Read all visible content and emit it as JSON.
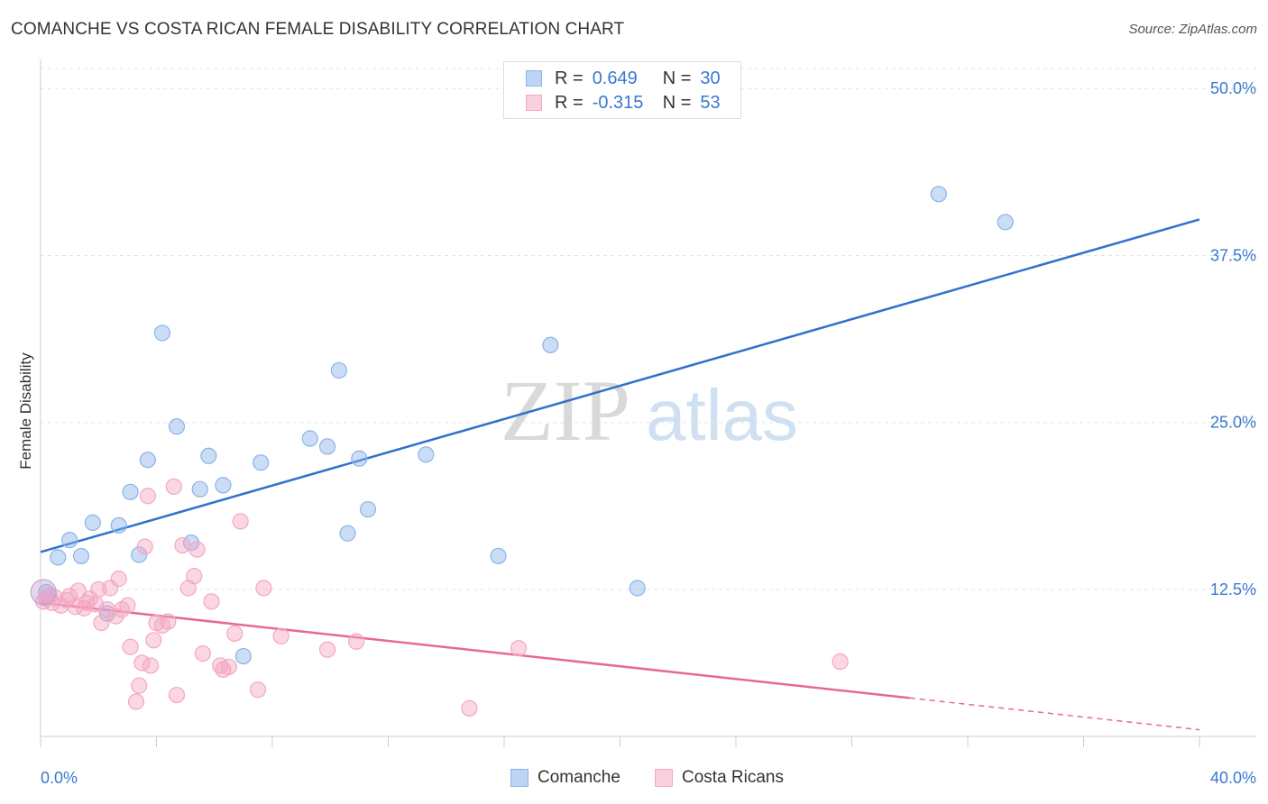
{
  "title": "COMANCHE VS COSTA RICAN FEMALE DISABILITY CORRELATION CHART",
  "source": "Source: ZipAtlas.com",
  "watermark": {
    "zip": "ZIP",
    "atlas": "atlas"
  },
  "legend": {
    "rows": [
      {
        "r_label": "R =",
        "r_value": "0.649",
        "n_label": "N =",
        "n_value": "30"
      },
      {
        "r_label": "R =",
        "r_value": "-0.315",
        "n_label": "N =",
        "n_value": "53"
      }
    ]
  },
  "chart_data": {
    "type": "scatter",
    "title": "COMANCHE VS COSTA RICAN FEMALE DISABILITY CORRELATION CHART",
    "xlabel": "",
    "ylabel": "Female Disability",
    "xlim": [
      0,
      40
    ],
    "ylim": [
      1.5,
      51.5
    ],
    "x_tick_labels": [
      "0.0%",
      "40.0%"
    ],
    "y_ticks": [
      12.5,
      25.0,
      37.5,
      50.0
    ],
    "y_tick_labels": [
      "12.5%",
      "25.0%",
      "37.5%",
      "50.0%"
    ],
    "grid": true,
    "legend_position": "top-center",
    "series": [
      {
        "name": "Comanche",
        "color": "#8ab4e8",
        "line_color": "#2f72cc",
        "trend": {
          "x": [
            0,
            40
          ],
          "y": [
            15.3,
            40.2
          ],
          "dashed_from": null
        },
        "points": [
          [
            0.2,
            12.3
          ],
          [
            0.6,
            14.9
          ],
          [
            1.0,
            16.2
          ],
          [
            1.4,
            15.0
          ],
          [
            1.8,
            17.5
          ],
          [
            2.3,
            10.7
          ],
          [
            2.7,
            17.3
          ],
          [
            3.1,
            19.8
          ],
          [
            3.4,
            15.1
          ],
          [
            3.7,
            22.2
          ],
          [
            4.2,
            31.7
          ],
          [
            4.7,
            24.7
          ],
          [
            5.2,
            16.0
          ],
          [
            5.5,
            20.0
          ],
          [
            5.8,
            22.5
          ],
          [
            6.3,
            20.3
          ],
          [
            7.0,
            7.5
          ],
          [
            7.6,
            22.0
          ],
          [
            9.3,
            23.8
          ],
          [
            9.9,
            23.2
          ],
          [
            10.3,
            28.9
          ],
          [
            10.6,
            16.7
          ],
          [
            11.0,
            22.3
          ],
          [
            11.3,
            18.5
          ],
          [
            13.3,
            22.6
          ],
          [
            15.8,
            15.0
          ],
          [
            17.6,
            30.8
          ],
          [
            20.6,
            12.6
          ],
          [
            31.0,
            42.1
          ],
          [
            33.3,
            40.0
          ]
        ]
      },
      {
        "name": "Costa Ricans",
        "color": "#f4a7c0",
        "line_color": "#e8679a",
        "trend": {
          "x": [
            0,
            40
          ],
          "y": [
            11.5,
            2.0
          ],
          "dashed_from": 30.0
        },
        "points": [
          [
            0.1,
            11.6
          ],
          [
            0.2,
            11.8
          ],
          [
            0.3,
            12.0
          ],
          [
            0.4,
            11.5
          ],
          [
            0.5,
            11.9
          ],
          [
            0.7,
            11.3
          ],
          [
            0.9,
            11.7
          ],
          [
            1.0,
            12.0
          ],
          [
            1.2,
            11.2
          ],
          [
            1.3,
            12.4
          ],
          [
            1.5,
            11.1
          ],
          [
            1.6,
            11.5
          ],
          [
            1.7,
            11.8
          ],
          [
            1.9,
            11.4
          ],
          [
            2.0,
            12.5
          ],
          [
            2.1,
            10.0
          ],
          [
            2.3,
            11.0
          ],
          [
            2.4,
            12.6
          ],
          [
            2.6,
            10.5
          ],
          [
            2.7,
            13.3
          ],
          [
            2.8,
            11.0
          ],
          [
            3.0,
            11.3
          ],
          [
            3.1,
            8.2
          ],
          [
            3.3,
            4.1
          ],
          [
            3.4,
            5.3
          ],
          [
            3.5,
            7.0
          ],
          [
            3.6,
            15.7
          ],
          [
            3.7,
            19.5
          ],
          [
            3.8,
            6.8
          ],
          [
            3.9,
            8.7
          ],
          [
            4.0,
            10.0
          ],
          [
            4.2,
            9.8
          ],
          [
            4.4,
            10.1
          ],
          [
            4.6,
            20.2
          ],
          [
            4.7,
            4.6
          ],
          [
            4.9,
            15.8
          ],
          [
            5.1,
            12.6
          ],
          [
            5.3,
            13.5
          ],
          [
            5.4,
            15.5
          ],
          [
            5.6,
            7.7
          ],
          [
            5.9,
            11.6
          ],
          [
            6.2,
            6.8
          ],
          [
            6.3,
            6.5
          ],
          [
            6.5,
            6.7
          ],
          [
            6.7,
            9.2
          ],
          [
            6.9,
            17.6
          ],
          [
            7.5,
            5.0
          ],
          [
            7.7,
            12.6
          ],
          [
            8.3,
            9.0
          ],
          [
            9.9,
            8.0
          ],
          [
            10.9,
            8.6
          ],
          [
            14.8,
            3.6
          ],
          [
            16.5,
            8.1
          ],
          [
            27.6,
            7.1
          ]
        ]
      }
    ]
  }
}
